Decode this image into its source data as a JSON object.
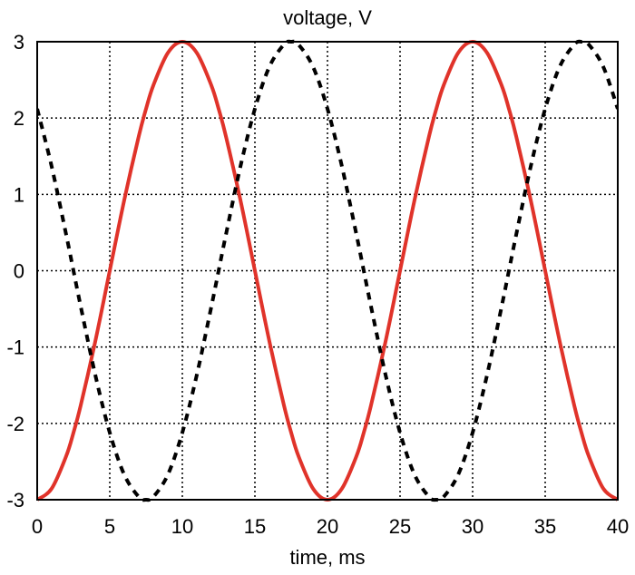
{
  "chart_data": {
    "type": "line",
    "title": "voltage, V",
    "xlabel": "time, ms",
    "ylabel": "",
    "xlim": [
      0,
      40
    ],
    "ylim": [
      -3,
      3
    ],
    "xticks": [
      0,
      5,
      10,
      15,
      20,
      25,
      30,
      35,
      40
    ],
    "yticks": [
      -3,
      -2,
      -1,
      0,
      1,
      2,
      3
    ],
    "xtick_labels": [
      "0",
      "5",
      "10",
      "15",
      "20",
      "25",
      "30",
      "35",
      "40"
    ],
    "ytick_labels": [
      "-3",
      "-2",
      "-1",
      "0",
      "1",
      "2",
      "3"
    ],
    "grid": true,
    "series": [
      {
        "style": "solid",
        "color": "#e0332a",
        "x": [
          0,
          1,
          2,
          2.5,
          3,
          4,
          5,
          6,
          7,
          7.5,
          8,
          9,
          10,
          11,
          12,
          12.5,
          13,
          14,
          15,
          16,
          17,
          17.5,
          18,
          19,
          20,
          21,
          22,
          22.5,
          23,
          24,
          25,
          26,
          27,
          27.5,
          28,
          29,
          30,
          31,
          32,
          32.5,
          33,
          34,
          35,
          36,
          37,
          37.5,
          38,
          39,
          40
        ],
        "y": [
          -3,
          -2.853,
          -2.427,
          -2.121,
          -1.763,
          -0.927,
          0,
          0.927,
          1.763,
          2.121,
          2.427,
          2.853,
          3,
          2.853,
          2.427,
          2.121,
          1.763,
          0.927,
          0,
          -0.927,
          -1.763,
          -2.121,
          -2.427,
          -2.853,
          -3,
          -2.853,
          -2.427,
          -2.121,
          -1.763,
          -0.927,
          0,
          0.927,
          1.763,
          2.121,
          2.427,
          2.853,
          3,
          2.853,
          2.427,
          2.121,
          1.763,
          0.927,
          0,
          -0.927,
          -1.763,
          -2.121,
          -2.427,
          -2.853,
          -3
        ]
      },
      {
        "style": "dashed",
        "color": "#000000",
        "x": [
          0,
          1,
          2,
          2.5,
          3,
          4,
          5,
          6,
          7,
          7.5,
          8,
          9,
          10,
          11,
          12,
          12.5,
          13,
          14,
          15,
          16,
          17,
          17.5,
          18,
          19,
          20,
          21,
          22,
          22.5,
          23,
          24,
          25,
          26,
          27,
          27.5,
          28,
          29,
          30,
          31,
          32,
          32.5,
          33,
          34,
          35,
          36,
          37,
          37.5,
          38,
          39,
          40
        ],
        "y": [
          2.121,
          1.363,
          0.469,
          0,
          -0.469,
          -1.363,
          -2.121,
          -2.673,
          -2.963,
          -3,
          -2.963,
          -2.673,
          -2.121,
          -1.363,
          -0.469,
          0,
          0.469,
          1.363,
          2.121,
          2.673,
          2.963,
          3,
          2.963,
          2.673,
          2.121,
          1.363,
          0.469,
          0,
          -0.469,
          -1.363,
          -2.121,
          -2.673,
          -2.963,
          -3,
          -2.963,
          -2.673,
          -2.121,
          -1.363,
          -0.469,
          0,
          0.469,
          1.363,
          2.121,
          2.673,
          2.963,
          3,
          2.963,
          2.673,
          2.121
        ]
      }
    ]
  }
}
